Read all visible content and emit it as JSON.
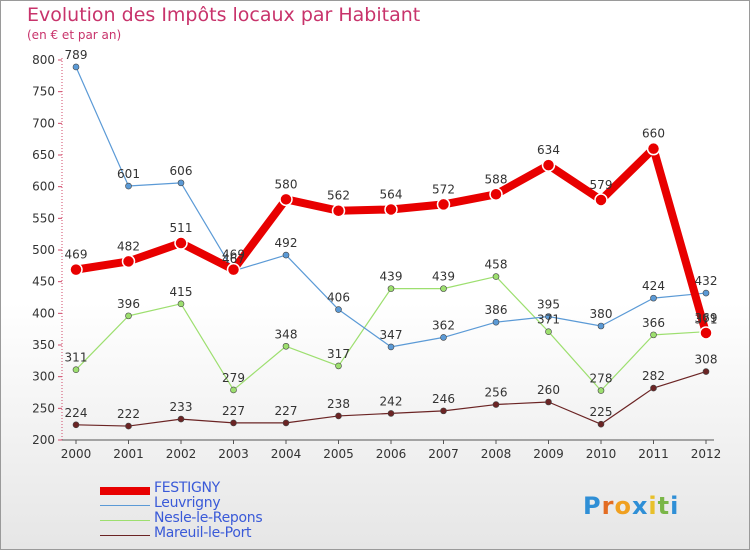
{
  "title": "Evolution des Impôts locaux par Habitant",
  "subtitle": "(en € et par an)",
  "logo": {
    "text": "Proxiti",
    "letters": [
      "P",
      "r",
      "o",
      "x",
      "i",
      "t",
      "i"
    ],
    "colors": [
      "#2f8fd6",
      "#e36c22",
      "#f0a020",
      "#2f8fd6",
      "#e8c02a",
      "#7ab648",
      "#2f8fd6"
    ]
  },
  "chart_data": {
    "type": "line",
    "title": "Evolution des Impôts locaux par Habitant",
    "ylabel": "(en € et par an)",
    "xlabel": "",
    "x": [
      "2000",
      "2001",
      "2002",
      "2003",
      "2004",
      "2005",
      "2006",
      "2007",
      "2008",
      "2009",
      "2010",
      "2011",
      "2012"
    ],
    "ylim": [
      200,
      800
    ],
    "yticks": [
      "200",
      "250",
      "300",
      "350",
      "400",
      "450",
      "500",
      "550",
      "600",
      "650",
      "700",
      "750",
      "800"
    ],
    "grid": false,
    "legend_position": "bottom-left",
    "series": [
      {
        "name": "FESTIGNY",
        "color": "#e80000",
        "values": [
          469,
          482,
          511,
          469,
          580,
          562,
          564,
          572,
          588,
          634,
          579,
          660,
          369
        ],
        "labels": [
          "469",
          "482",
          "511",
          "469",
          "580",
          "562",
          "564",
          "572",
          "588",
          "634",
          "579",
          "660",
          "369"
        ]
      },
      {
        "name": "Leuvrigny",
        "color": "#5b9ad6",
        "values": [
          789,
          601,
          606,
          467,
          492,
          406,
          347,
          362,
          386,
          395,
          380,
          424,
          432
        ],
        "labels": [
          "789",
          "601",
          "606",
          "467",
          "492",
          "406",
          "347",
          "362",
          "386",
          "395",
          "380",
          "424",
          "432"
        ]
      },
      {
        "name": "Nesle-le-Repons",
        "color": "#9ddf6f",
        "values": [
          311,
          396,
          415,
          279,
          348,
          317,
          439,
          439,
          458,
          371,
          278,
          366,
          371
        ],
        "labels": [
          "311",
          "396",
          "415",
          "279",
          "348",
          "317",
          "439",
          "439",
          "458",
          "371",
          "278",
          "366",
          "371"
        ]
      },
      {
        "name": "Mareuil-le-Port",
        "color": "#6b2424",
        "values": [
          224,
          222,
          233,
          227,
          227,
          238,
          242,
          246,
          256,
          260,
          225,
          282,
          308
        ],
        "labels": [
          "224",
          "222",
          "233",
          "227",
          "227",
          "238",
          "242",
          "246",
          "256",
          "260",
          "225",
          "282",
          "308"
        ]
      }
    ]
  }
}
